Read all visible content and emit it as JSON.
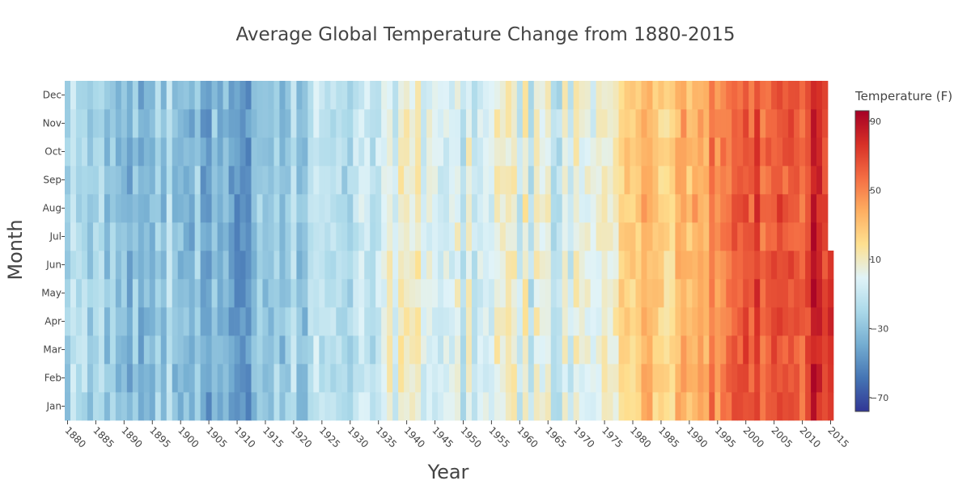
{
  "chart_data": {
    "type": "heatmap",
    "title": "Average Global Temperature Change from 1880-2015",
    "xlabel": "Year",
    "ylabel": "Month",
    "x_range": [
      1880,
      2015
    ],
    "x_ticks": [
      1880,
      1885,
      1890,
      1895,
      1900,
      1905,
      1910,
      1915,
      1920,
      1925,
      1930,
      1935,
      1940,
      1945,
      1950,
      1955,
      1960,
      1965,
      1970,
      1975,
      1980,
      1985,
      1990,
      1995,
      2000,
      2005,
      2010,
      2015
    ],
    "months": [
      "Jan",
      "Feb",
      "Mar",
      "Apr",
      "May",
      "Jun",
      "Jul",
      "Aug",
      "Sep",
      "Oct",
      "Nov",
      "Dec"
    ],
    "last_year_months_available": 6,
    "colorbar": {
      "title": "Temperature (F)",
      "range": [
        -78,
        96
      ],
      "ticks": [
        90,
        50,
        10,
        -30,
        -70
      ],
      "colorscale": [
        "#313695",
        "#4575b4",
        "#74add1",
        "#abd9e9",
        "#e0f3f8",
        "#fee090",
        "#fdae61",
        "#f46d43",
        "#d73027",
        "#a50026"
      ]
    },
    "decade_mean": [
      {
        "year": 1880,
        "value": -20
      },
      {
        "year": 1890,
        "value": -28
      },
      {
        "year": 1900,
        "value": -22
      },
      {
        "year": 1905,
        "value": -38
      },
      {
        "year": 1910,
        "value": -42
      },
      {
        "year": 1915,
        "value": -30
      },
      {
        "year": 1920,
        "value": -26
      },
      {
        "year": 1925,
        "value": -18
      },
      {
        "year": 1930,
        "value": -16
      },
      {
        "year": 1935,
        "value": -10
      },
      {
        "year": 1940,
        "value": 8
      },
      {
        "year": 1945,
        "value": 6
      },
      {
        "year": 1950,
        "value": -6
      },
      {
        "year": 1955,
        "value": -4
      },
      {
        "year": 1960,
        "value": 0
      },
      {
        "year": 1965,
        "value": -6
      },
      {
        "year": 1970,
        "value": 0
      },
      {
        "year": 1975,
        "value": -2
      },
      {
        "year": 1980,
        "value": 26
      },
      {
        "year": 1985,
        "value": 24
      },
      {
        "year": 1990,
        "value": 40
      },
      {
        "year": 1995,
        "value": 50
      },
      {
        "year": 2000,
        "value": 62
      },
      {
        "year": 2005,
        "value": 70
      },
      {
        "year": 2010,
        "value": 70
      },
      {
        "year": 2015,
        "value": 82
      }
    ]
  }
}
